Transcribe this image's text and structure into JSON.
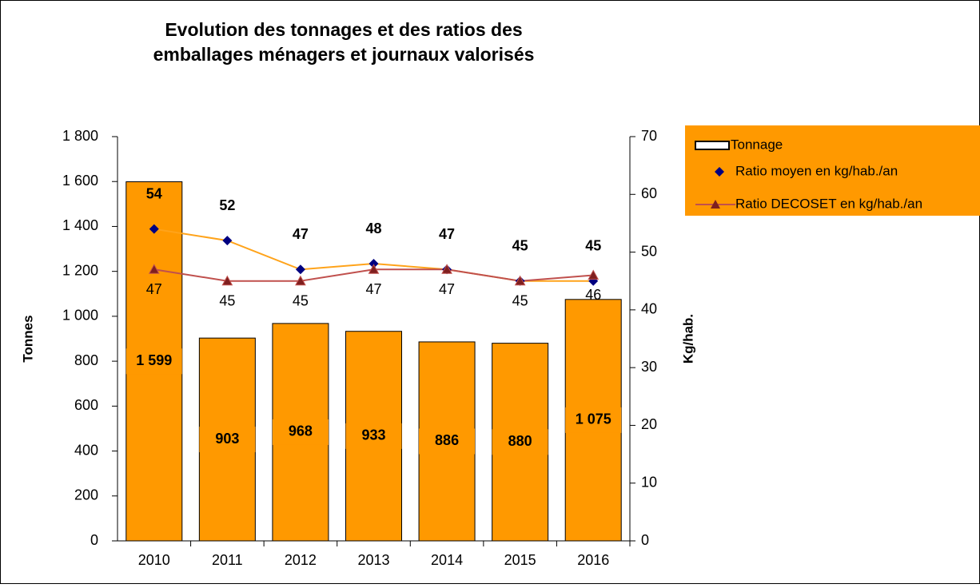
{
  "chart_data": {
    "type": "bar-line",
    "title": "Evolution des tonnages et des ratios des emballages ménagers et journaux valorisés",
    "y_label": "Tonnes",
    "y2_label": "Kg/hab.",
    "categories": [
      "2010",
      "2011",
      "2012",
      "2013",
      "2014",
      "2015",
      "2016"
    ],
    "ylim": [
      0,
      1800
    ],
    "yticks": [
      0,
      200,
      400,
      600,
      800,
      {
        "value": 1000,
        "label": "1 000"
      },
      {
        "value": 1200,
        "label": "1 200"
      },
      {
        "value": 1400,
        "label": "1 400"
      },
      {
        "value": 1600,
        "label": "1 600"
      },
      {
        "value": 1800,
        "label": "1 800"
      }
    ],
    "y2lim": [
      0,
      70
    ],
    "y2ticks": [
      0,
      10,
      20,
      30,
      40,
      50,
      60,
      70
    ],
    "legend": "right",
    "series": [
      {
        "name": "Tonnage",
        "type": "bar",
        "color": "#ff9900",
        "values": [
          1599,
          903,
          968,
          933,
          886,
          880,
          1075
        ],
        "value_labels": [
          "1 599",
          "903",
          "968",
          "933",
          "886",
          "880",
          "1 075"
        ]
      },
      {
        "name": "Ratio moyen en kg/hab./an",
        "type": "marker",
        "axis": "y2",
        "color": "#000080",
        "line_color": "#ffa31a",
        "values": [
          54,
          52,
          47,
          48,
          47,
          45,
          45
        ]
      },
      {
        "name": "Ratio DECOSET en kg/hab./an",
        "type": "line",
        "axis": "y2",
        "color": "#c0504d",
        "values": [
          47,
          45,
          45,
          47,
          47,
          45,
          46
        ]
      }
    ]
  }
}
